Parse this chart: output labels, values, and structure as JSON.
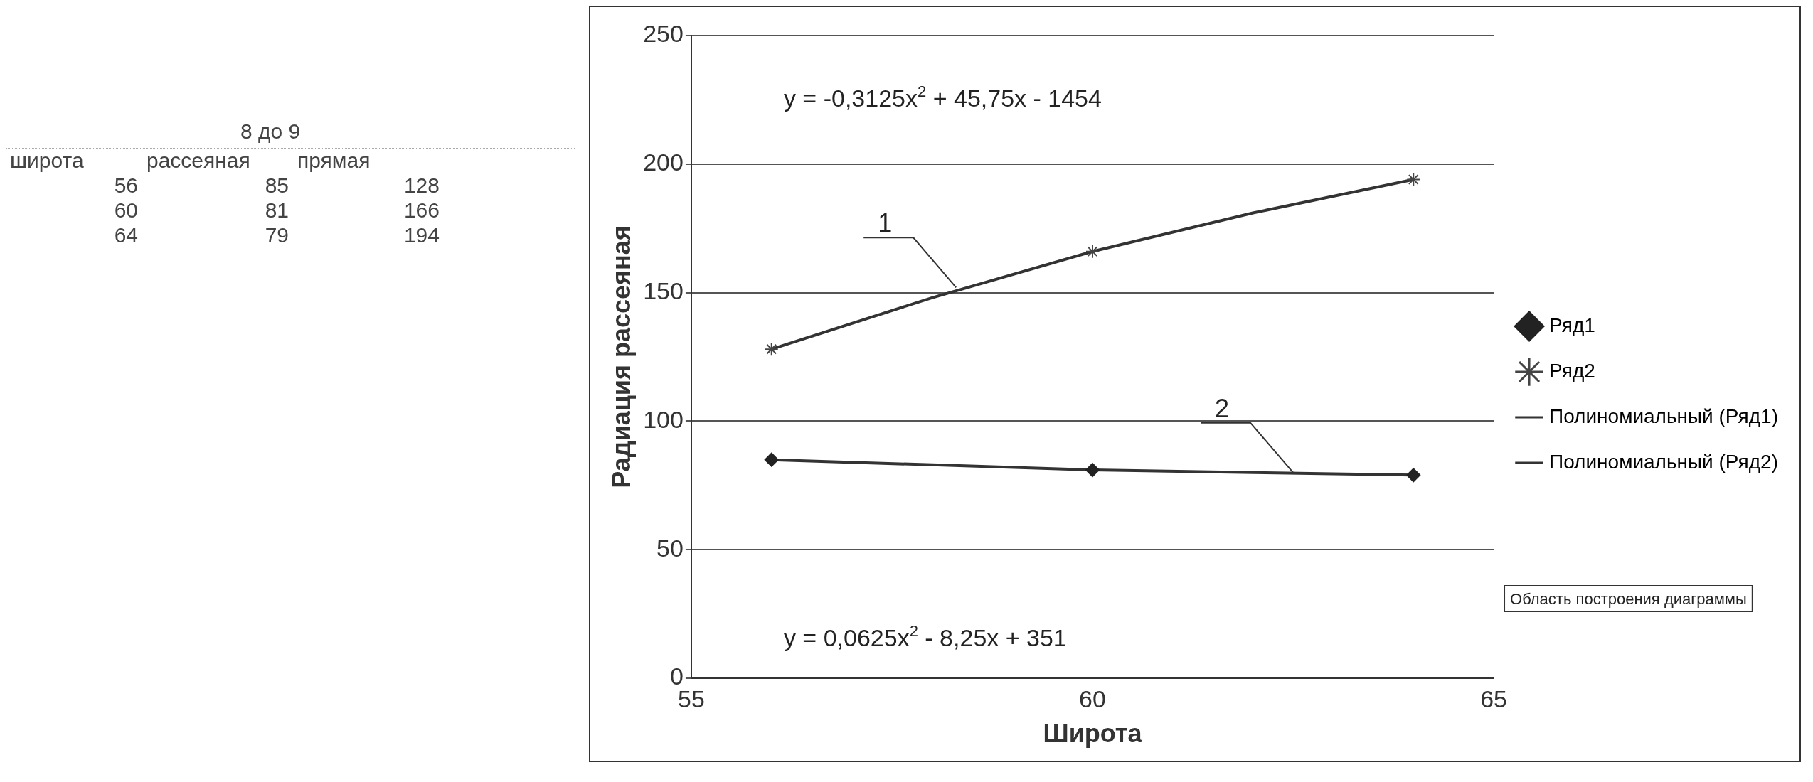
{
  "chart_data": [
    {
      "type": "other",
      "title": "8 до 9",
      "annotations": [
        "широта",
        "рассеяная",
        "прямая",
        "56",
        "85",
        "128",
        "60",
        "81",
        "166",
        "64",
        "79",
        "194"
      ]
    },
    {
      "type": "scatter",
      "xlabel": "Широта",
      "ylabel": "Радиация рассеяная",
      "xlim": [
        55,
        65
      ],
      "xticks": [
        55,
        60,
        65
      ],
      "ylim": [
        0,
        250
      ],
      "yticks": [
        0,
        50,
        100,
        150,
        200,
        250
      ],
      "grid": "y",
      "legend": "right",
      "x": [
        56,
        60,
        64
      ],
      "series": [
        {
          "name": "Ряд1",
          "color": "#222222",
          "marker": "diamond",
          "values": [
            85,
            81,
            79
          ]
        },
        {
          "name": "Ряд2",
          "color": "#444444",
          "marker": "cross",
          "values": [
            128,
            166,
            194
          ]
        },
        {
          "name": "Полиномиальный (Ряд1)",
          "type": "line",
          "marker": "none",
          "color": "#333333",
          "x": [
            56,
            58,
            60,
            62,
            64
          ],
          "values": [
            85,
            83,
            81,
            80,
            79
          ]
        },
        {
          "name": "Полиномиальный (Ряд2)",
          "type": "line",
          "marker": "none",
          "color": "#333333",
          "x": [
            56,
            58,
            60,
            62,
            64
          ],
          "values": [
            128,
            148,
            166,
            181,
            194
          ]
        }
      ],
      "annotations": [
        "y = -0,3125x$^{2}$ + 45,75x - 1454",
        "y = 0,0625x$^{2}$ - 8,25x + 351",
        {
          "text": "1",
          "x": 58.3,
          "y": 152
        },
        {
          "text": "2",
          "x": 62.5,
          "y": 80
        },
        "Область построения диаграммы"
      ]
    }
  ]
}
